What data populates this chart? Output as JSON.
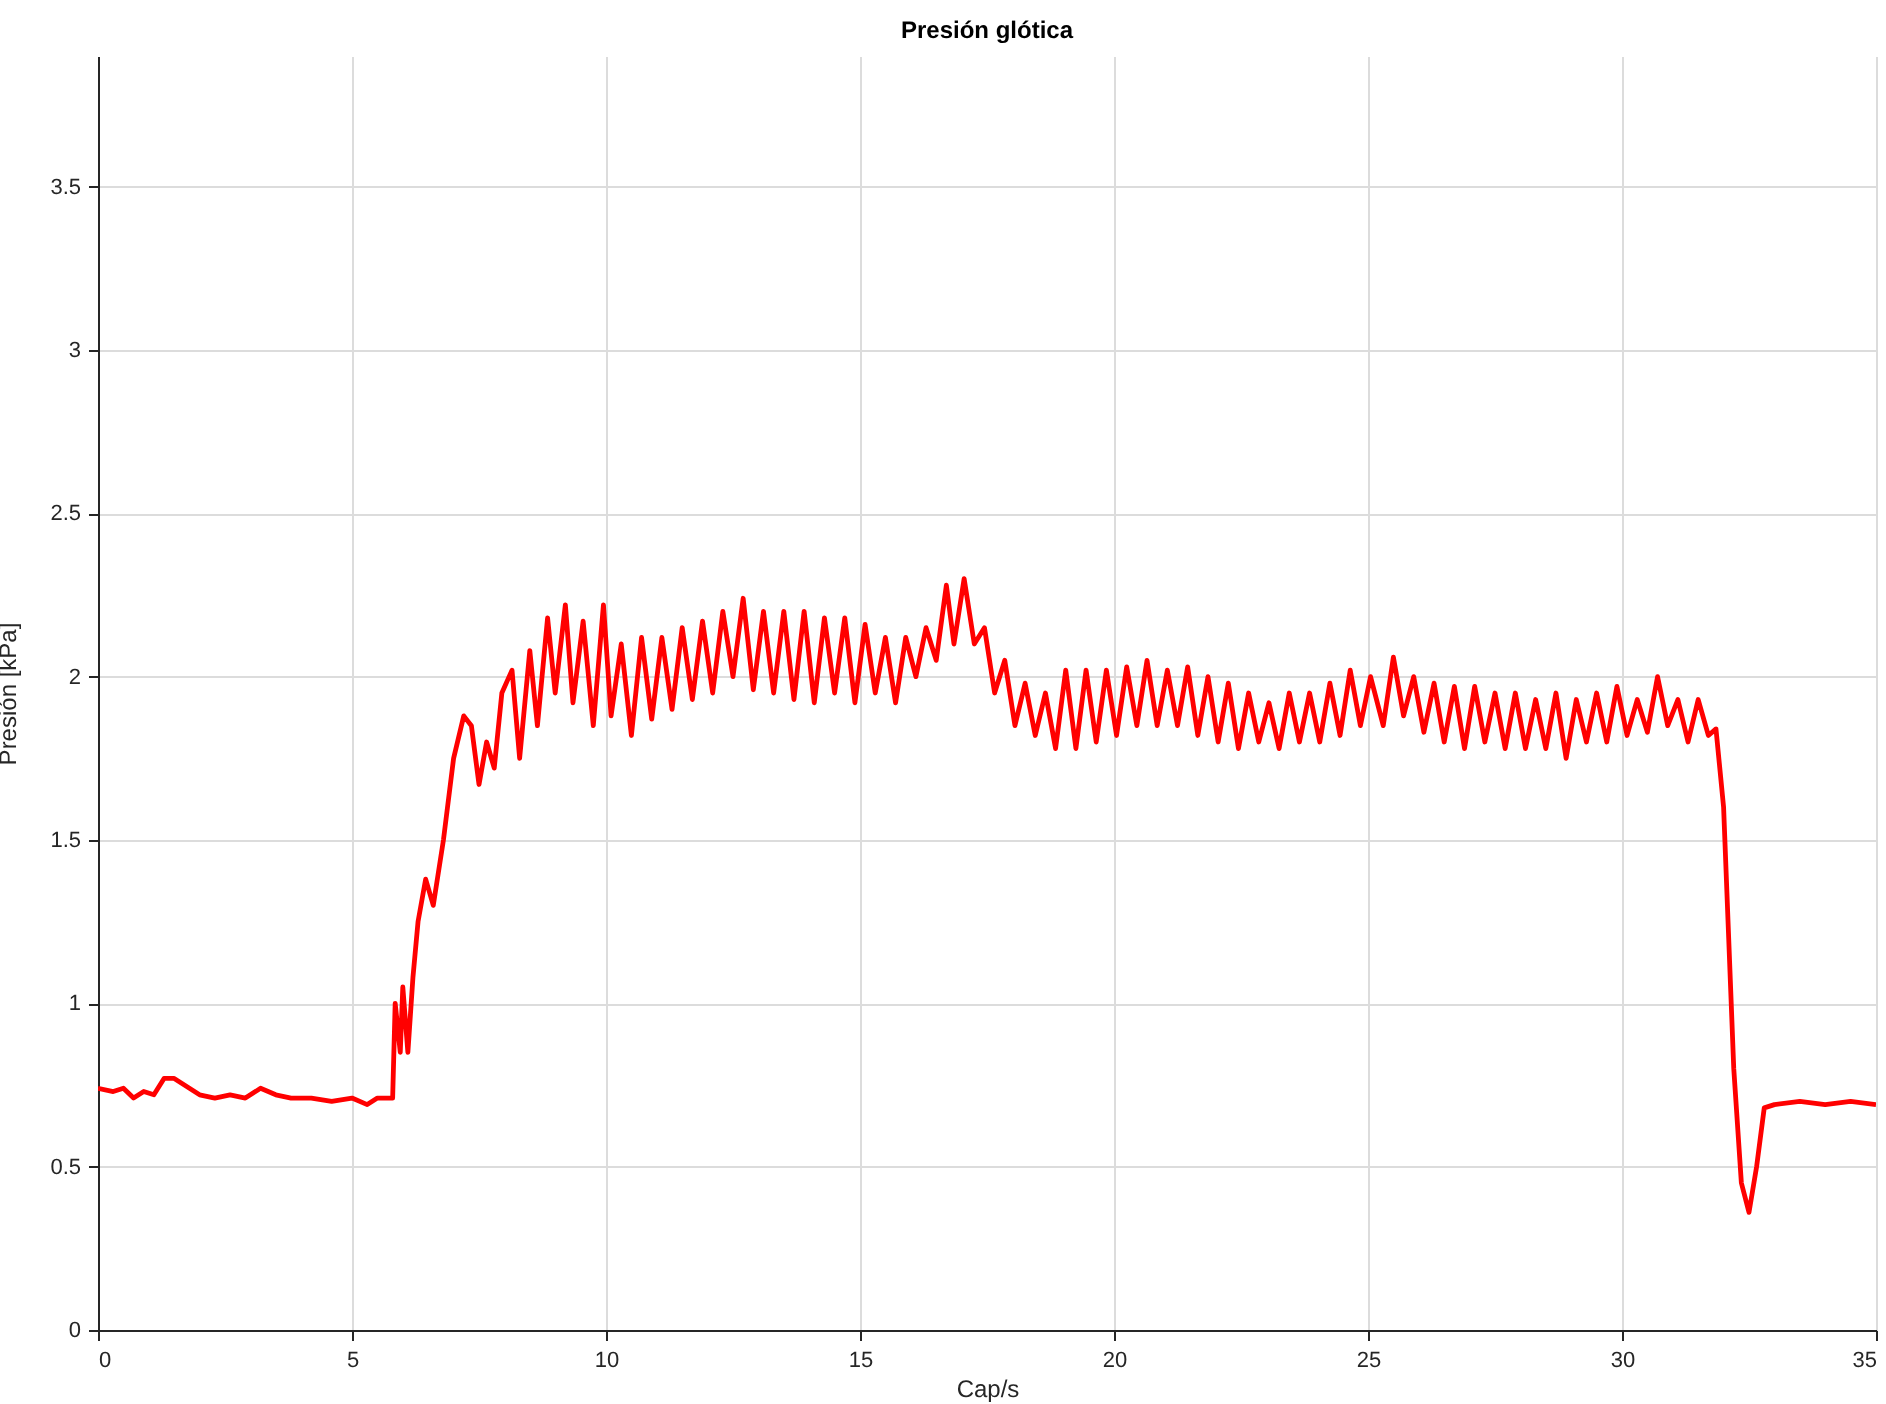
{
  "chart_data": {
    "type": "line",
    "title": "Presión glótica",
    "xlabel": "Cap/s",
    "ylabel": "Presión [kPa]",
    "xlim": [
      0,
      35
    ],
    "ylim": [
      0,
      3.9
    ],
    "xticks": [
      0,
      5,
      10,
      15,
      20,
      25,
      30,
      35
    ],
    "yticks": [
      0,
      0.5,
      1,
      1.5,
      2,
      2.5,
      3,
      3.5
    ],
    "grid": true,
    "line_style": "solid",
    "x": [
      0,
      0.3,
      0.5,
      0.7,
      0.9,
      1.1,
      1.3,
      1.5,
      1.7,
      2.0,
      2.3,
      2.6,
      2.9,
      3.2,
      3.5,
      3.8,
      4.2,
      4.6,
      5.0,
      5.3,
      5.5,
      5.8,
      5.85,
      5.95,
      6.0,
      6.1,
      6.2,
      6.3,
      6.45,
      6.6,
      6.8,
      7.0,
      7.2,
      7.35,
      7.5,
      7.65,
      7.8,
      7.95,
      8.15,
      8.3,
      8.5,
      8.65,
      8.85,
      9.0,
      9.2,
      9.35,
      9.55,
      9.75,
      9.95,
      10.1,
      10.3,
      10.5,
      10.7,
      10.9,
      11.1,
      11.3,
      11.5,
      11.7,
      11.9,
      12.1,
      12.3,
      12.5,
      12.7,
      12.9,
      13.1,
      13.3,
      13.5,
      13.7,
      13.9,
      14.1,
      14.3,
      14.5,
      14.7,
      14.9,
      15.1,
      15.3,
      15.5,
      15.7,
      15.9,
      16.1,
      16.3,
      16.5,
      16.7,
      16.85,
      17.05,
      17.25,
      17.45,
      17.65,
      17.85,
      18.05,
      18.25,
      18.45,
      18.65,
      18.85,
      19.05,
      19.25,
      19.45,
      19.65,
      19.85,
      20.05,
      20.25,
      20.45,
      20.65,
      20.85,
      21.05,
      21.25,
      21.45,
      21.65,
      21.85,
      22.05,
      22.25,
      22.45,
      22.65,
      22.85,
      23.05,
      23.25,
      23.45,
      23.65,
      23.85,
      24.05,
      24.25,
      24.45,
      24.65,
      24.85,
      25.05,
      25.3,
      25.5,
      25.7,
      25.9,
      26.1,
      26.3,
      26.5,
      26.7,
      26.9,
      27.1,
      27.3,
      27.5,
      27.7,
      27.9,
      28.1,
      28.3,
      28.5,
      28.7,
      28.9,
      29.1,
      29.3,
      29.5,
      29.7,
      29.9,
      30.1,
      30.3,
      30.5,
      30.7,
      30.9,
      31.1,
      31.3,
      31.5,
      31.7,
      31.85,
      32.0,
      32.1,
      32.2,
      32.35,
      32.5,
      32.65,
      32.8,
      33.0,
      33.5,
      34.0,
      34.5,
      35.0
    ],
    "series": [
      {
        "color": "#ff0000",
        "values": [
          0.74,
          0.73,
          0.74,
          0.71,
          0.73,
          0.72,
          0.77,
          0.77,
          0.75,
          0.72,
          0.71,
          0.72,
          0.71,
          0.74,
          0.72,
          0.71,
          0.71,
          0.7,
          0.71,
          0.69,
          0.71,
          0.71,
          1.0,
          0.85,
          1.05,
          0.85,
          1.08,
          1.25,
          1.38,
          1.3,
          1.5,
          1.75,
          1.88,
          1.85,
          1.67,
          1.8,
          1.72,
          1.95,
          2.02,
          1.75,
          2.08,
          1.85,
          2.18,
          1.95,
          2.22,
          1.92,
          2.17,
          1.85,
          2.22,
          1.88,
          2.1,
          1.82,
          2.12,
          1.87,
          2.12,
          1.9,
          2.15,
          1.93,
          2.17,
          1.95,
          2.2,
          2.0,
          2.24,
          1.96,
          2.2,
          1.95,
          2.2,
          1.93,
          2.2,
          1.92,
          2.18,
          1.95,
          2.18,
          1.92,
          2.16,
          1.95,
          2.12,
          1.92,
          2.12,
          2.0,
          2.15,
          2.05,
          2.28,
          2.1,
          2.3,
          2.1,
          2.15,
          1.95,
          2.05,
          1.85,
          1.98,
          1.82,
          1.95,
          1.78,
          2.02,
          1.78,
          2.02,
          1.8,
          2.02,
          1.82,
          2.03,
          1.85,
          2.05,
          1.85,
          2.02,
          1.85,
          2.03,
          1.82,
          2.0,
          1.8,
          1.98,
          1.78,
          1.95,
          1.8,
          1.92,
          1.78,
          1.95,
          1.8,
          1.95,
          1.8,
          1.98,
          1.82,
          2.02,
          1.85,
          2.0,
          1.85,
          2.06,
          1.88,
          2.0,
          1.83,
          1.98,
          1.8,
          1.97,
          1.78,
          1.97,
          1.8,
          1.95,
          1.78,
          1.95,
          1.78,
          1.93,
          1.78,
          1.95,
          1.75,
          1.93,
          1.8,
          1.95,
          1.8,
          1.97,
          1.82,
          1.93,
          1.83,
          2.0,
          1.85,
          1.93,
          1.8,
          1.93,
          1.82,
          1.84,
          1.6,
          1.2,
          0.8,
          0.45,
          0.36,
          0.5,
          0.68,
          0.69,
          0.7,
          0.69,
          0.7,
          0.69
        ]
      }
    ]
  }
}
